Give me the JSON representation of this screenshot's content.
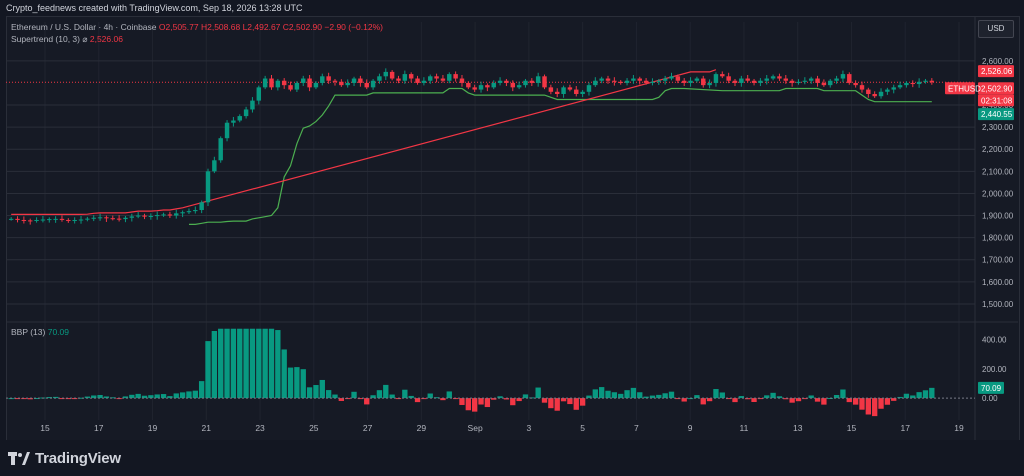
{
  "header": {
    "credit": "Crypto_feednews created with TradingView.com, Sep 18, 2026 13:28 UTC"
  },
  "toolbar": {
    "currency_label": "USD"
  },
  "legend": {
    "symbol": "Ethereum / U.S. Dollar · 4h · Coinbase",
    "open": "O2,505.77",
    "high": "H2,508.68",
    "low": "L2,492.67",
    "close": "C2,502.90",
    "change": "−2.90 (−0.12%)",
    "indicator": "Supertrend (10, 3)",
    "indicator_sep": "⌀",
    "indicator_value": "2,526.06"
  },
  "price_badges": {
    "symbol_tag": "ETHUSD",
    "supertrend": "2,526.06",
    "last": "2,502.90",
    "countdown": "02:31:08",
    "support": "2,440.55",
    "bbp": "70.09"
  },
  "bbp_legend": {
    "name": "BBP (13)",
    "value": "70.09"
  },
  "footer": {
    "brand": "TradingView"
  },
  "colors": {
    "up": "#089981",
    "down": "#f23645",
    "grid": "#2a2e39",
    "text": "#b2b5be",
    "st_up": "#4caf50",
    "st_down": "#f23645"
  },
  "chart_data": {
    "type": "candlestick",
    "price_axis": {
      "ticks": [
        1500,
        1600,
        1700,
        1800,
        1900,
        2000,
        2100,
        2200,
        2300,
        2400,
        2600
      ],
      "tick_labels": [
        "1,500.00",
        "1,600.00",
        "1,700.00",
        "1,800.00",
        "1,900.00",
        "2,000.00",
        "2,100.00",
        "2,200.00",
        "2,300.00",
        "2,400.00",
        "2,600.00"
      ],
      "range": [
        1450,
        2640
      ]
    },
    "time_axis": {
      "labels": [
        "15",
        "17",
        "19",
        "21",
        "23",
        "25",
        "27",
        "29",
        "Sep",
        "3",
        "5",
        "7",
        "9",
        "11",
        "13",
        "15",
        "17",
        "19"
      ]
    },
    "close_series": [
      1885,
      1880,
      1878,
      1876,
      1880,
      1882,
      1884,
      1885,
      1880,
      1878,
      1880,
      1882,
      1886,
      1890,
      1892,
      1888,
      1886,
      1884,
      1890,
      1896,
      1900,
      1895,
      1898,
      1902,
      1905,
      1900,
      1910,
      1915,
      1920,
      1925,
      1960,
      2100,
      2150,
      2250,
      2320,
      2330,
      2350,
      2380,
      2420,
      2480,
      2520,
      2480,
      2510,
      2490,
      2470,
      2500,
      2520,
      2480,
      2500,
      2530,
      2510,
      2505,
      2490,
      2500,
      2520,
      2500,
      2480,
      2510,
      2530,
      2550,
      2520,
      2510,
      2540,
      2520,
      2500,
      2510,
      2530,
      2520,
      2510,
      2540,
      2520,
      2500,
      2480,
      2470,
      2490,
      2480,
      2500,
      2510,
      2500,
      2480,
      2490,
      2510,
      2500,
      2530,
      2480,
      2460,
      2450,
      2480,
      2470,
      2450,
      2460,
      2490,
      2510,
      2520,
      2510,
      2505,
      2500,
      2510,
      2520,
      2510,
      2500,
      2505,
      2510,
      2520,
      2530,
      2510,
      2500,
      2510,
      2520,
      2490,
      2500,
      2540,
      2530,
      2510,
      2500,
      2520,
      2510,
      2500,
      2510,
      2520,
      2530,
      2520,
      2510,
      2500,
      2505,
      2510,
      2520,
      2500,
      2490,
      2510,
      2520,
      2540,
      2500,
      2490,
      2470,
      2450,
      2440,
      2460,
      2470,
      2480,
      2490,
      2500,
      2495,
      2505,
      2510,
      2502.9
    ],
    "supertrend": {
      "up_value": 2440.55,
      "down_value": 2526.06
    },
    "bbp": {
      "name": "BBP (13)",
      "last": 70.09,
      "axis_ticks": [
        0,
        200,
        400
      ],
      "tick_labels": [
        "0.00",
        "200.00",
        "400.00"
      ],
      "range": [
        -150,
        480
      ]
    }
  }
}
